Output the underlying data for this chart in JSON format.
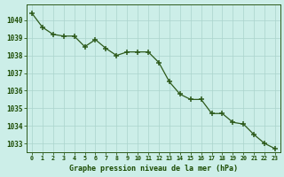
{
  "x": [
    0,
    1,
    2,
    3,
    4,
    5,
    6,
    7,
    8,
    9,
    10,
    11,
    12,
    13,
    14,
    15,
    16,
    17,
    18,
    19,
    20,
    21,
    22,
    23
  ],
  "y": [
    1040.4,
    1039.6,
    1039.2,
    1039.1,
    1039.1,
    1038.5,
    1038.9,
    1038.4,
    1038.0,
    1038.2,
    1038.2,
    1038.2,
    1037.6,
    1036.5,
    1035.8,
    1035.5,
    1035.5,
    1034.7,
    1034.7,
    1034.2,
    1034.1,
    1033.5,
    1033.0,
    1032.7
  ],
  "line_color": "#2d5a1b",
  "marker_color": "#2d5a1b",
  "bg_color": "#cceee8",
  "grid_color": "#aad4cc",
  "title": "Graphe pression niveau de la mer (hPa)",
  "tick_color": "#1a4a00",
  "ylim_min": 1032.5,
  "ylim_max": 1040.9,
  "xlim_min": -0.5,
  "xlim_max": 23.5,
  "yticks": [
    1033,
    1034,
    1035,
    1036,
    1037,
    1038,
    1039,
    1040
  ]
}
